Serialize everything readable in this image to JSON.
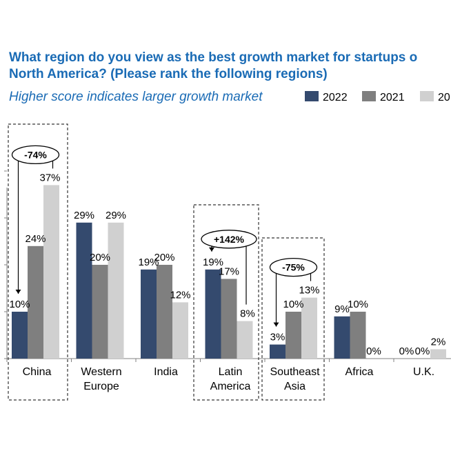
{
  "chart_data": {
    "type": "bar",
    "title_lines": [
      "What region do you view as the best growth market for startups o",
      "North America? (Please rank the following regions)"
    ],
    "subtitle": "Higher score indicates larger growth market",
    "xlabel": "",
    "ylabel": "",
    "ylim": [
      0,
      40
    ],
    "grid": false,
    "legend_placement": "top-right",
    "categories": [
      [
        "China"
      ],
      [
        "Western",
        "Europe"
      ],
      [
        "India"
      ],
      [
        "Latin",
        "America"
      ],
      [
        "Southeast",
        "Asia"
      ],
      [
        "Africa"
      ],
      [
        "U.K."
      ]
    ],
    "series": [
      {
        "name": "2022",
        "color": "#344a6e",
        "values": [
          10,
          29,
          19,
          19,
          3,
          9,
          0
        ],
        "labels": [
          "10%",
          "29%",
          "19%",
          "19%",
          "3%",
          "9%",
          "0%"
        ]
      },
      {
        "name": "2021",
        "color": "#7f7f7f",
        "values": [
          24,
          20,
          20,
          17,
          10,
          10,
          0
        ],
        "labels": [
          "24%",
          "20%",
          "20%",
          "17%",
          "10%",
          "10%",
          "0%"
        ]
      },
      {
        "name": "20",
        "color": "#d0d0d0",
        "values": [
          37,
          29,
          12,
          8,
          13,
          0,
          2
        ],
        "labels": [
          "37%",
          "29%",
          "12%",
          "8%",
          "13%",
          "0%",
          "2%"
        ]
      }
    ],
    "annotations": [
      {
        "category": 0,
        "text": "-74%"
      },
      {
        "category": 3,
        "text": "+142%"
      },
      {
        "category": 4,
        "text": "-75%"
      }
    ]
  }
}
